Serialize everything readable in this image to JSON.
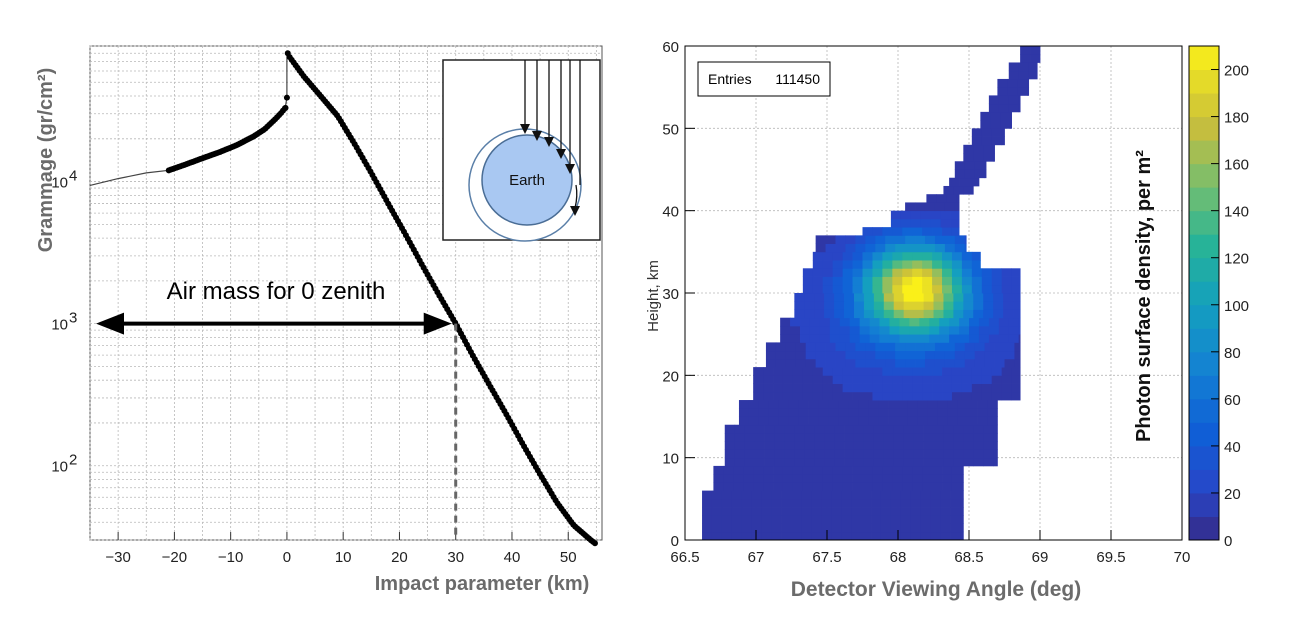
{
  "chart_data": [
    {
      "type": "line",
      "xlabel": "Impact parameter (km)",
      "ylabel": "Grammage (gr/cm²)",
      "xlim": [
        -35,
        56
      ],
      "ylim": [
        30,
        90000
      ],
      "yscale": "log",
      "x_ticks": [
        -30,
        -20,
        -10,
        0,
        10,
        20,
        30,
        40,
        50
      ],
      "x_tick_labels": [
        "−30",
        "−20",
        "−10",
        "0",
        "10",
        "20",
        "30",
        "40",
        "50"
      ],
      "y_ticks": [
        {
          "value": 100,
          "base": "10",
          "exp": "2"
        },
        {
          "value": 1000,
          "base": "10",
          "exp": "3"
        },
        {
          "value": 10000,
          "base": "10",
          "exp": "4"
        }
      ],
      "series": [
        {
          "name": "grammage",
          "x": [
            -35,
            -30,
            -25,
            -21,
            -18,
            -15,
            -12,
            -9,
            -6,
            -4,
            -2,
            -1,
            -0.3,
            0,
            0,
            0.3,
            3,
            6,
            9,
            12,
            15,
            18,
            21,
            24,
            27,
            30,
            33,
            36,
            39,
            42,
            45,
            48,
            51,
            54,
            55
          ],
          "y": [
            9400,
            10500,
            11500,
            12000,
            13200,
            14600,
            16100,
            18000,
            20700,
            23300,
            27700,
            30500,
            33000,
            39000,
            80000,
            77000,
            55000,
            40000,
            29000,
            18500,
            11500,
            7000,
            4300,
            2600,
            1600,
            1000,
            600,
            370,
            230,
            140,
            87,
            55,
            38,
            30,
            28
          ]
        }
      ],
      "annotations": {
        "arrow_label": "Air mass for 0 zenith",
        "vertical_marker_x": 30,
        "inset_label": "Earth"
      }
    },
    {
      "type": "heatmap",
      "xlabel": "Detector Viewing Angle (deg)",
      "ylabel": "Height, km",
      "colorbar_label": "Photon surface density, per m²",
      "xlim": [
        66.5,
        70
      ],
      "ylim": [
        0,
        60
      ],
      "zlim": [
        0,
        210
      ],
      "x_ticks": [
        66.5,
        67,
        67.5,
        68,
        68.5,
        69,
        69.5,
        70
      ],
      "x_tick_labels": [
        "66.5",
        "67",
        "67.5",
        "68",
        "68.5",
        "69",
        "69.5",
        "70"
      ],
      "y_ticks": [
        0,
        10,
        20,
        30,
        40,
        50,
        60
      ],
      "y_tick_labels": [
        "0",
        "10",
        "20",
        "30",
        "40",
        "50",
        "60"
      ],
      "colorbar_ticks": [
        0,
        20,
        40,
        60,
        80,
        100,
        120,
        140,
        160,
        180,
        200
      ],
      "colorbar_tick_labels": [
        "0",
        "20",
        "40",
        "60",
        "80",
        "100",
        "120",
        "140",
        "160",
        "180",
        "200"
      ],
      "stats_box": {
        "label": "Entries",
        "value": "111450"
      },
      "grid": true,
      "bins": {
        "dx": 0.07,
        "dy": 1.0
      },
      "outer_region": [
        [
          0,
          66.62,
          68.46
        ],
        [
          6,
          66.7,
          68.46
        ],
        [
          9,
          66.78,
          68.7
        ],
        [
          14,
          66.88,
          68.7
        ],
        [
          17,
          66.98,
          68.86
        ],
        [
          21,
          67.07,
          68.86
        ],
        [
          24,
          67.17,
          68.86
        ],
        [
          27,
          67.27,
          68.86
        ],
        [
          30,
          67.33,
          68.86
        ],
        [
          33,
          67.4,
          68.58
        ],
        [
          35,
          67.42,
          68.48
        ],
        [
          37,
          67.75,
          68.43
        ],
        [
          38,
          67.95,
          68.43
        ],
        [
          40,
          68.05,
          68.43
        ],
        [
          41,
          68.2,
          68.43
        ],
        [
          42,
          68.32,
          68.53
        ],
        [
          43,
          68.36,
          68.57
        ],
        [
          44,
          68.4,
          68.62
        ],
        [
          46,
          68.46,
          68.68
        ],
        [
          48,
          68.52,
          68.75
        ],
        [
          50,
          68.58,
          68.8
        ],
        [
          52,
          68.64,
          68.86
        ],
        [
          54,
          68.7,
          68.92
        ],
        [
          56,
          68.78,
          68.98
        ],
        [
          58,
          68.86,
          69.0
        ],
        [
          60
        ]
      ],
      "hotspot": {
        "center_x": 68.12,
        "center_y": 30.5,
        "sigma_x": 0.33,
        "sigma_y": 5.0,
        "peak": 205
      },
      "inner_band": {
        "center_x": 68.08,
        "center_y": 27.0,
        "sigma_x": 0.75,
        "sigma_y": 9.5,
        "level": 28
      }
    }
  ]
}
